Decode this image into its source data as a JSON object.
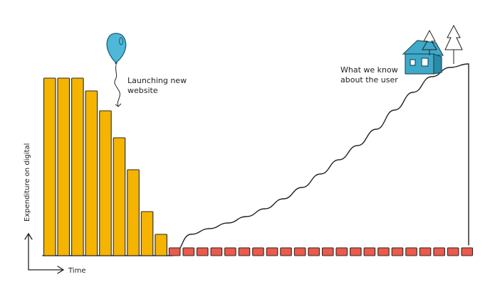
{
  "chart_data": {
    "type": "bar",
    "xlabel": "Time",
    "ylabel": "Expenditure on digital",
    "series": [
      {
        "values": [
          250,
          250,
          250,
          232,
          204,
          166,
          121,
          62,
          30,
          11,
          11,
          11,
          11,
          11,
          11,
          11,
          11,
          11,
          11,
          11,
          11,
          11,
          11,
          11,
          11,
          11,
          11,
          11,
          11,
          11,
          11
        ]
      }
    ],
    "bar_colors": {
      "high_spend": "#F4B400",
      "low_spend": "#EB5A4B"
    },
    "curve": {
      "values": [
        0,
        0,
        0,
        0,
        0,
        0,
        0,
        0,
        30,
        38,
        46,
        55,
        66,
        80,
        96,
        115,
        135,
        155,
        178,
        205,
        230,
        252,
        265,
        270
      ]
    },
    "annotations": [
      {
        "text_lines": [
          "Launching new",
          "website"
        ],
        "icon": "balloon-icon"
      },
      {
        "text_lines": [
          "What we know",
          "about the user"
        ],
        "icon": "house-icon"
      }
    ]
  },
  "colors": {
    "balloon": "#4FB8D9",
    "house": "#3FA9C9",
    "ink": "#222222"
  }
}
